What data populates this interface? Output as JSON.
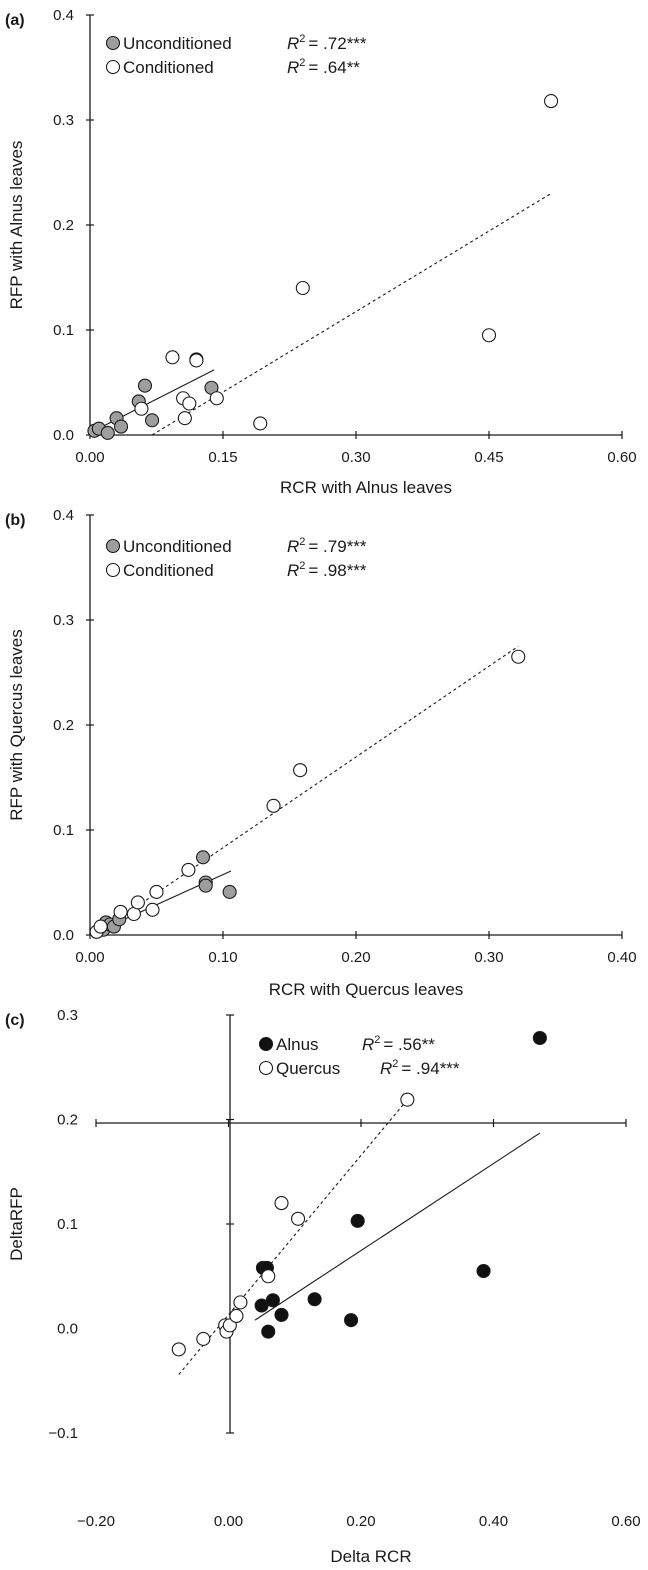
{
  "chart_data": [
    {
      "type": "scatter",
      "panel_label": "(a)",
      "xlabel": "RCR with Alnus leaves",
      "ylabel": "RFP with Alnus leaves",
      "xlim": [
        0,
        0.6
      ],
      "ylim": [
        0,
        0.4
      ],
      "xticks": [
        "0.00",
        "0.15",
        "0.30",
        "0.45",
        "0.60"
      ],
      "yticks": [
        "0.0",
        "0.1",
        "0.2",
        "0.3",
        "0.4"
      ],
      "legend_position": "top-left",
      "series": [
        {
          "name": "Unconditioned",
          "r2_label": "= .72***",
          "marker": "filled-gray",
          "trendline": "solid",
          "fit": [
            [
              0.0,
              0.002
            ],
            [
              0.14,
              0.062
            ]
          ],
          "points": [
            [
              0.005,
              0.004
            ],
            [
              0.01,
              0.006
            ],
            [
              0.02,
              0.002
            ],
            [
              0.03,
              0.016
            ],
            [
              0.035,
              0.008
            ],
            [
              0.055,
              0.032
            ],
            [
              0.062,
              0.047
            ],
            [
              0.07,
              0.014
            ],
            [
              0.12,
              0.072
            ],
            [
              0.137,
              0.045
            ]
          ]
        },
        {
          "name": "Conditioned",
          "r2_label": "= .64**",
          "marker": "open",
          "trendline": "dashed",
          "fit": [
            [
              0.07,
              0.0
            ],
            [
              0.52,
              0.23
            ]
          ],
          "points": [
            [
              0.058,
              0.025
            ],
            [
              0.093,
              0.074
            ],
            [
              0.105,
              0.035
            ],
            [
              0.107,
              0.016
            ],
            [
              0.112,
              0.03
            ],
            [
              0.12,
              0.071
            ],
            [
              0.143,
              0.035
            ],
            [
              0.192,
              0.011
            ],
            [
              0.24,
              0.14
            ],
            [
              0.45,
              0.095
            ],
            [
              0.52,
              0.318
            ]
          ]
        }
      ]
    },
    {
      "type": "scatter",
      "panel_label": "(b)",
      "xlabel": "RCR with Quercus leaves",
      "ylabel": "RFP with Quercus leaves",
      "xlim": [
        0,
        0.4
      ],
      "ylim": [
        0,
        0.4
      ],
      "xticks": [
        "0.00",
        "0.10",
        "0.20",
        "0.30",
        "0.40"
      ],
      "yticks": [
        "0.0",
        "0.1",
        "0.2",
        "0.3",
        "0.4"
      ],
      "legend_position": "top-left",
      "series": [
        {
          "name": "Unconditioned",
          "r2_label": "= .79***",
          "marker": "filled-gray",
          "trendline": "solid",
          "fit": [
            [
              0.005,
              0.003
            ],
            [
              0.106,
              0.061
            ]
          ],
          "points": [
            [
              0.01,
              0.005
            ],
            [
              0.012,
              0.012
            ],
            [
              0.015,
              0.01
            ],
            [
              0.018,
              0.008
            ],
            [
              0.022,
              0.015
            ],
            [
              0.085,
              0.074
            ],
            [
              0.087,
              0.05
            ],
            [
              0.087,
              0.047
            ],
            [
              0.105,
              0.041
            ]
          ]
        },
        {
          "name": "Conditioned",
          "r2_label": "= .98***",
          "marker": "open",
          "trendline": "dashed",
          "fit": [
            [
              0.005,
              0.001
            ],
            [
              0.322,
              0.275
            ]
          ],
          "points": [
            [
              0.005,
              0.003
            ],
            [
              0.008,
              0.008
            ],
            [
              0.023,
              0.022
            ],
            [
              0.033,
              0.02
            ],
            [
              0.036,
              0.031
            ],
            [
              0.047,
              0.024
            ],
            [
              0.05,
              0.041
            ],
            [
              0.074,
              0.062
            ],
            [
              0.138,
              0.123
            ],
            [
              0.158,
              0.157
            ],
            [
              0.322,
              0.265
            ]
          ]
        }
      ]
    },
    {
      "type": "scatter",
      "panel_label": "(c)",
      "xlabel": "Delta RCR",
      "ylabel": "DeltaRFP",
      "xlim": [
        -0.2,
        0.6
      ],
      "ylim": [
        -0.1,
        0.3
      ],
      "xticks": [
        "−0.20",
        "0.00",
        "0.20",
        "0.40",
        "0.60"
      ],
      "yticks": [
        "−0.1",
        "0.0",
        "0.1",
        "0.2",
        "0.3"
      ],
      "legend_position": "top-left",
      "series": [
        {
          "name": "Alnus",
          "r2_label": "= .56**",
          "marker": "filled-black",
          "trendline": "solid",
          "fit": [
            [
              0.04,
              0.008
            ],
            [
              0.47,
              0.187
            ]
          ],
          "points": [
            [
              0.05,
              0.022
            ],
            [
              0.052,
              0.058
            ],
            [
              0.058,
              0.058
            ],
            [
              0.06,
              -0.003
            ],
            [
              0.067,
              0.027
            ],
            [
              0.08,
              0.013
            ],
            [
              0.13,
              0.028
            ],
            [
              0.185,
              0.008
            ],
            [
              0.195,
              0.103
            ],
            [
              0.385,
              0.055
            ],
            [
              0.47,
              0.278
            ]
          ]
        },
        {
          "name": "Quercus",
          "r2_label": "= .94***",
          "marker": "open",
          "trendline": "dashed",
          "fit": [
            [
              -0.075,
              -0.044
            ],
            [
              0.27,
              0.219
            ]
          ],
          "points": [
            [
              -0.075,
              -0.02
            ],
            [
              -0.038,
              -0.01
            ],
            [
              -0.005,
              0.003
            ],
            [
              -0.003,
              -0.003
            ],
            [
              0.002,
              0.003
            ],
            [
              0.012,
              0.012
            ],
            [
              0.018,
              0.025
            ],
            [
              0.06,
              0.05
            ],
            [
              0.08,
              0.12
            ],
            [
              0.105,
              0.105
            ],
            [
              0.27,
              0.219
            ]
          ]
        }
      ]
    }
  ]
}
